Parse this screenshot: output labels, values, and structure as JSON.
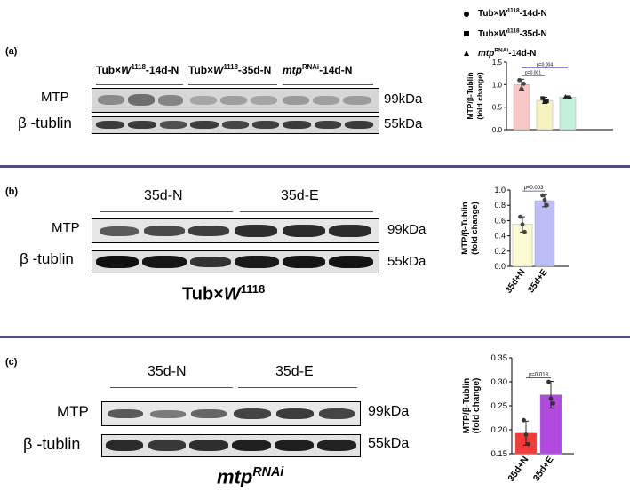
{
  "legend": [
    {
      "marker": "circle",
      "prefix": "Tub×",
      "geno": "W",
      "sup": "1118",
      "suffix": "-14d-N"
    },
    {
      "marker": "square",
      "prefix": "Tub×",
      "geno": "W",
      "sup": "1118",
      "suffix": "-35d-N"
    },
    {
      "marker": "triangle",
      "prefix": "",
      "geno": "mtp",
      "sup": "RNAi",
      "suffix": "-14d-N"
    }
  ],
  "panel_a": {
    "label": "(a)",
    "groups": [
      {
        "prefix": "Tub×",
        "geno": "W",
        "sup": "1118",
        "suffix": "-14d-N"
      },
      {
        "prefix": "Tub×",
        "geno": "W",
        "sup": "1118",
        "suffix": "-35d-N"
      },
      {
        "prefix": "",
        "geno": "mtp",
        "sup": "RNAi",
        "suffix": "-14d-N"
      }
    ],
    "row1_label": "MTP",
    "row2_label": "β -tublin",
    "row1_kda": "99kDa",
    "row2_kda": "55kDa"
  },
  "panel_b": {
    "label": "(b)",
    "groups": [
      "35d-N",
      "35d-E"
    ],
    "row1_label": "MTP",
    "row2_label": "β -tublin",
    "row1_kda": "99kDa",
    "row2_kda": "55kDa",
    "caption_prefix": "Tub×",
    "caption_geno": "W",
    "caption_sup": "1118"
  },
  "panel_c": {
    "label": "(c)",
    "groups": [
      "35d-N",
      "35d-E"
    ],
    "row1_label": "MTP",
    "row2_label": "β -tublin",
    "row1_kda": "99kDa",
    "row2_kda": "55kDa",
    "caption_geno": "mtp",
    "caption_sup": "RNAi"
  },
  "chart_data": [
    {
      "type": "bar",
      "ylabel_line1": "MTP/β-Tublin",
      "ylabel_line2": "(fold change)",
      "ylim": [
        0,
        1.5
      ],
      "yticks": [
        "0.0",
        "0.5",
        "1.0",
        "1.5"
      ],
      "categories": [
        "Tub×W1118-14d-N",
        "Tub×W1118-35d-N",
        "mtpRNAi-14d-N"
      ],
      "values": [
        1.0,
        0.65,
        0.72
      ],
      "errors": [
        0.12,
        0.07,
        0.03
      ],
      "points": [
        [
          1.1,
          0.9,
          1.02
        ],
        [
          0.7,
          0.62,
          0.63
        ],
        [
          0.73,
          0.71,
          0.72
        ]
      ],
      "markers": [
        "circle",
        "square",
        "triangle"
      ],
      "colors": [
        "#f7c6c6",
        "#f7f2c1",
        "#c3f0dc"
      ],
      "point_colors": [
        "#444444",
        "#222222",
        "#222222"
      ],
      "annotations": [
        {
          "from": 0,
          "to": 1,
          "text": "p=0.001"
        },
        {
          "from": 0,
          "to": 2,
          "text": "p=0.004"
        }
      ],
      "xticklabels": []
    },
    {
      "type": "bar",
      "ylabel_line1": "MTP/β-Tublin",
      "ylabel_line2": "(fold change)",
      "ylim": [
        0,
        1.0
      ],
      "yticks": [
        "0.0",
        "0.2",
        "0.4",
        "0.6",
        "0.8",
        "1.0"
      ],
      "categories": [
        "35d+N",
        "35d+E"
      ],
      "values": [
        0.55,
        0.86
      ],
      "errors": [
        0.1,
        0.08
      ],
      "points": [
        [
          0.65,
          0.55,
          0.45
        ],
        [
          0.93,
          0.87,
          0.8
        ]
      ],
      "markers": [
        "circle",
        "circle"
      ],
      "colors": [
        "#fbfad2",
        "#bcbcf7"
      ],
      "point_colors": [
        "#444444",
        "#444444"
      ],
      "annotations": [
        {
          "from": 0,
          "to": 1,
          "text": "p=0.003"
        }
      ],
      "xticklabels": [
        "35d+N",
        "35d+E"
      ]
    },
    {
      "type": "bar",
      "ylabel_line1": "MTP/β-Tublin",
      "ylabel_line2": "(fold change)",
      "ylim": [
        0.15,
        0.35
      ],
      "yticks": [
        "0.15",
        "0.20",
        "0.25",
        "0.30",
        "0.35"
      ],
      "categories": [
        "35d+N",
        "35d+E"
      ],
      "values": [
        0.193,
        0.273
      ],
      "errors": [
        0.025,
        0.028
      ],
      "points": [
        [
          0.22,
          0.19,
          0.17
        ],
        [
          0.3,
          0.265,
          0.255
        ]
      ],
      "markers": [
        "circle",
        "circle"
      ],
      "colors": [
        "#f53a3a",
        "#b14be0"
      ],
      "point_colors": [
        "#333333",
        "#333333"
      ],
      "annotations": [
        {
          "from": 0,
          "to": 1,
          "text": "p=0.018"
        }
      ],
      "xticklabels": [
        "35d+N",
        "35d+E"
      ]
    }
  ]
}
